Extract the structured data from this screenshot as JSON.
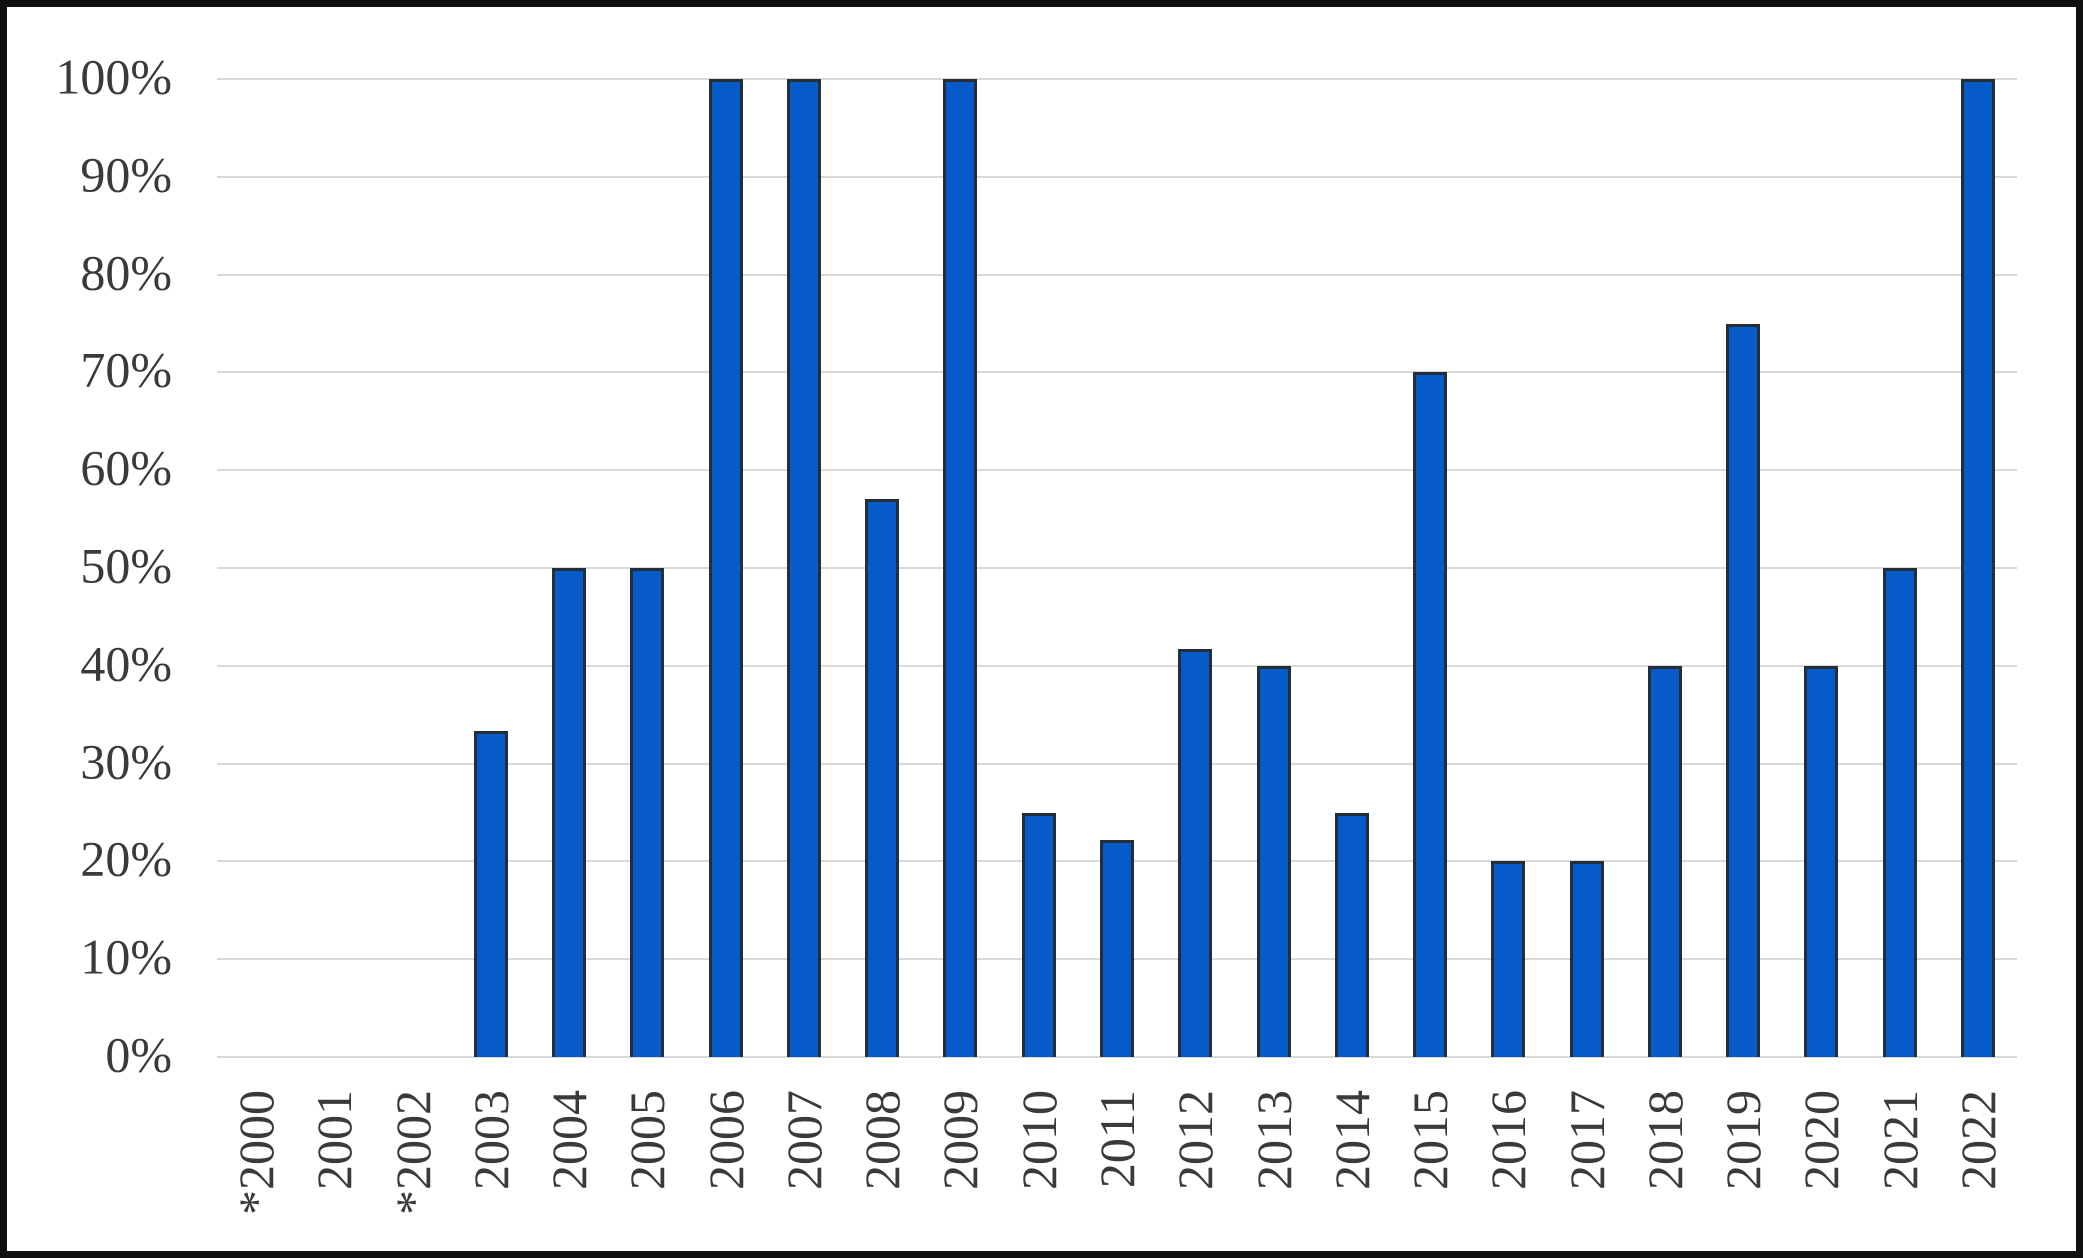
{
  "chart_data": {
    "type": "bar",
    "title": "",
    "xlabel": "",
    "ylabel": "",
    "categories": [
      "*2000",
      "2001",
      "*2002",
      "2003",
      "2004",
      "2005",
      "2006",
      "2007",
      "2008",
      "2009",
      "2010",
      "2011",
      "2012",
      "2013",
      "2014",
      "2015",
      "2016",
      "2017",
      "2018",
      "2019",
      "2020",
      "2021",
      "2022"
    ],
    "values": [
      0,
      0,
      0,
      33.3,
      50,
      50,
      100,
      100,
      57.1,
      100,
      25,
      22.2,
      41.7,
      40,
      25,
      70,
      20,
      20,
      40,
      75,
      40,
      50,
      100
    ],
    "y_ticks": [
      "0%",
      "10%",
      "20%",
      "30%",
      "40%",
      "50%",
      "60%",
      "70%",
      "80%",
      "90%",
      "100%"
    ],
    "ylim": [
      0,
      100
    ],
    "grid": "horizontal-only",
    "legend": "none",
    "colors": {
      "bar_fill": "#065bc8",
      "bar_border": "#222e38",
      "gridline": "#d9d9d9",
      "axis_text": "#3a3a3a",
      "frame_border": "#101010",
      "background": "#ffffff"
    }
  }
}
